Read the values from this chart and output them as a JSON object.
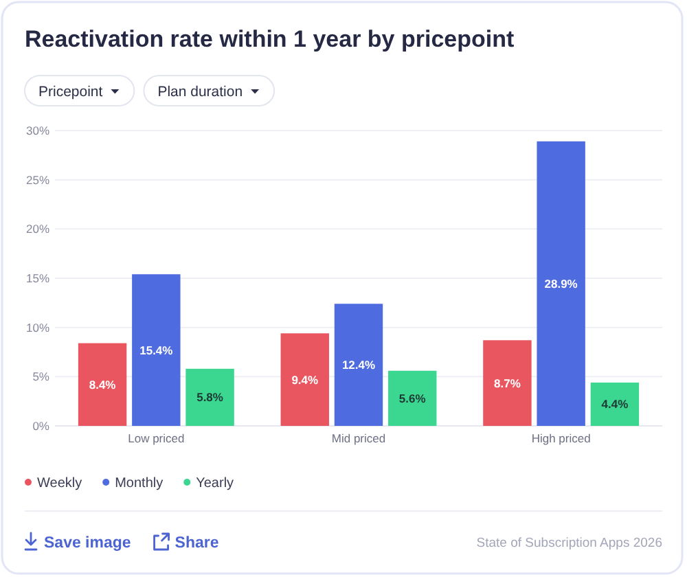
{
  "chart_data": {
    "type": "bar",
    "title": "Reactivation rate within 1 year by pricepoint",
    "categories": [
      "Low priced",
      "Mid priced",
      "High priced"
    ],
    "series": [
      {
        "name": "Weekly",
        "color": "#ea5660",
        "values": [
          8.4,
          9.4,
          8.7
        ],
        "value_labels": [
          "8.4%",
          "9.4%",
          "8.7%"
        ]
      },
      {
        "name": "Monthly",
        "color": "#4f6be0",
        "values": [
          15.4,
          12.4,
          28.9
        ],
        "value_labels": [
          "15.4%",
          "12.4%",
          "28.9%"
        ]
      },
      {
        "name": "Yearly",
        "color": "#3bd690",
        "values": [
          5.8,
          5.6,
          4.4
        ],
        "value_labels": [
          "5.8%",
          "5.6%",
          "4.4%"
        ]
      }
    ],
    "ylim": [
      0,
      30
    ],
    "yticks": [
      {
        "value": 0,
        "label": "0%"
      },
      {
        "value": 5,
        "label": "5%"
      },
      {
        "value": 10,
        "label": "10%"
      },
      {
        "value": 15,
        "label": "15%"
      },
      {
        "value": 20,
        "label": "20%"
      },
      {
        "value": 25,
        "label": "25%"
      },
      {
        "value": 30,
        "label": "30%"
      }
    ],
    "grid": "y",
    "legend": "bottom left",
    "annotations": [
      "Pricepoint",
      "Plan duration",
      "Save image",
      "Share",
      "State of Subscription Apps 2026"
    ]
  }
}
